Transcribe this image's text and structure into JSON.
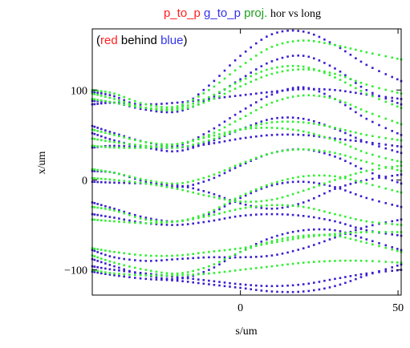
{
  "chart_data": {
    "type": "scatter",
    "title": {
      "parts": [
        {
          "text": "p_to_p",
          "color": "#ff2020"
        },
        {
          "text": "g_to_p",
          "color": "#3333ee"
        },
        {
          "text": "proj.",
          "color": "#20a020"
        },
        {
          "text": "hor vs long",
          "color": "#000000"
        }
      ]
    },
    "annotation": {
      "parts": [
        {
          "text": "(",
          "color": "#000000"
        },
        {
          "text": "red",
          "color": "#ff2020"
        },
        {
          "text": " behind ",
          "color": "#000000"
        },
        {
          "text": "blue",
          "color": "#3333ee"
        },
        {
          "text": ")",
          "color": "#000000"
        }
      ]
    },
    "xlabel": "s/um",
    "ylabel": "x/um",
    "xlim": [
      -47,
      51
    ],
    "ylim": [
      -128,
      168
    ],
    "x_ticks": [
      {
        "value": 0,
        "label": "0"
      },
      {
        "value": 50,
        "label": "50"
      }
    ],
    "y_ticks": [
      {
        "value": 100,
        "label": "100"
      },
      {
        "value": 0,
        "label": "0"
      },
      {
        "value": -100,
        "label": "−100"
      }
    ],
    "grid": false,
    "colors": {
      "p_to_p": "#ff2020",
      "g_to_p": "#3a1fd0",
      "proj": "#33ee33"
    },
    "series": [
      {
        "name": "g_to_p",
        "color": "#3a1fd0",
        "curves": [
          {
            "x": [
              -47,
              -40,
              -30,
              -20,
              -10,
              0,
              10,
              20,
              30,
              40,
              51
            ],
            "y": [
              98,
              93,
              80,
              80,
              105,
              138,
              162,
              165,
              150,
              128,
              110
            ]
          },
          {
            "x": [
              -47,
              -40,
              -30,
              -20,
              -10,
              0,
              10,
              20,
              30,
              40,
              51
            ],
            "y": [
              88,
              86,
              78,
              76,
              90,
              112,
              132,
              138,
              124,
              100,
              84
            ]
          },
          {
            "x": [
              -47,
              -40,
              -30,
              -20,
              -10,
              0,
              10,
              20,
              30,
              40,
              51
            ],
            "y": [
              84,
              86,
              84,
              86,
              90,
              94,
              98,
              101,
              100,
              95,
              90
            ]
          },
          {
            "x": [
              -47,
              -40,
              -30,
              -20,
              -10,
              0,
              10,
              20,
              30,
              40,
              51
            ],
            "y": [
              60,
              52,
              42,
              38,
              54,
              76,
              95,
              103,
              90,
              68,
              50
            ]
          },
          {
            "x": [
              -47,
              -40,
              -30,
              -20,
              -10,
              0,
              10,
              20,
              30,
              40,
              51
            ],
            "y": [
              52,
              44,
              36,
              32,
              42,
              56,
              68,
              68,
              57,
              42,
              30
            ]
          },
          {
            "x": [
              -47,
              -40,
              -30,
              -20,
              -10,
              0,
              10,
              20,
              30,
              40,
              51
            ],
            "y": [
              36,
              38,
              36,
              36,
              40,
              46,
              50,
              50,
              46,
              42,
              37
            ]
          },
          {
            "x": [
              -47,
              -40,
              -30,
              -20,
              -10,
              0,
              10,
              20,
              30,
              40,
              51
            ],
            "y": [
              10,
              8,
              -2,
              -8,
              0,
              16,
              30,
              34,
              26,
              10,
              -4
            ]
          },
          {
            "x": [
              -47,
              -40,
              -30,
              -20,
              -10,
              0,
              10,
              20,
              30,
              40,
              51
            ],
            "y": [
              -2,
              -3,
              -4,
              -6,
              -14,
              -26,
              -32,
              -25,
              -10,
              0,
              6
            ]
          },
          {
            "x": [
              -47,
              -40,
              -30,
              -20,
              -10,
              0,
              10,
              20,
              30,
              40,
              51
            ],
            "y": [
              -25,
              -32,
              -42,
              -46,
              -38,
              -20,
              -6,
              -2,
              -8,
              -20,
              -30
            ]
          },
          {
            "x": [
              -47,
              -40,
              -30,
              -20,
              -10,
              0,
              10,
              20,
              30,
              40,
              51
            ],
            "y": [
              -38,
              -42,
              -48,
              -50,
              -46,
              -40,
              -38,
              -40,
              -46,
              -56,
              -62
            ]
          },
          {
            "x": [
              -47,
              -40,
              -30,
              -20,
              -10,
              0,
              10,
              20,
              30,
              40,
              51
            ],
            "y": [
              -78,
              -86,
              -90,
              -88,
              -86,
              -86,
              -84,
              -76,
              -64,
              -52,
              -44
            ]
          },
          {
            "x": [
              -47,
              -40,
              -30,
              -20,
              -10,
              0,
              10,
              20,
              30,
              40,
              51
            ],
            "y": [
              -88,
              -96,
              -106,
              -110,
              -100,
              -80,
              -64,
              -56,
              -56,
              -66,
              -78
            ]
          },
          {
            "x": [
              -47,
              -40,
              -30,
              -20,
              -10,
              0,
              10,
              20,
              30,
              40,
              51
            ],
            "y": [
              -96,
              -100,
              -104,
              -108,
              -112,
              -116,
              -118,
              -116,
              -110,
              -104,
              -100
            ]
          },
          {
            "x": [
              -47,
              -40,
              -30,
              -20,
              -10,
              0,
              10,
              20,
              30,
              40,
              51
            ],
            "y": [
              -102,
              -106,
              -110,
              -112,
              -116,
              -120,
              -124,
              -124,
              -118,
              -106,
              -94
            ]
          }
        ]
      },
      {
        "name": "proj.",
        "color": "#33ee33",
        "curves": [
          {
            "x": [
              -47,
              -40,
              -30,
              -20,
              -10,
              0,
              10,
              20,
              30,
              40,
              51
            ],
            "y": [
              100,
              96,
              84,
              82,
              100,
              126,
              148,
              155,
              150,
              142,
              134
            ]
          },
          {
            "x": [
              -47,
              -40,
              -30,
              -20,
              -10,
              0,
              10,
              20,
              30,
              40,
              51
            ],
            "y": [
              96,
              90,
              80,
              78,
              88,
              104,
              118,
              123,
              118,
              106,
              96
            ]
          },
          {
            "x": [
              -47,
              -40,
              -30,
              -20,
              -10,
              0,
              10,
              20,
              30,
              40,
              51
            ],
            "y": [
              90,
              86,
              80,
              80,
              92,
              110,
              124,
              126,
              114,
              96,
              80
            ]
          },
          {
            "x": [
              -47,
              -40,
              -30,
              -20,
              -10,
              0,
              10,
              20,
              30,
              40,
              51
            ],
            "y": [
              56,
              50,
              42,
              40,
              50,
              68,
              86,
              94,
              90,
              76,
              62
            ]
          },
          {
            "x": [
              -47,
              -40,
              -30,
              -20,
              -10,
              0,
              10,
              20,
              30,
              40,
              51
            ],
            "y": [
              46,
              42,
              38,
              36,
              44,
              56,
              64,
              64,
              58,
              50,
              44
            ]
          },
          {
            "x": [
              -47,
              -40,
              -30,
              -20,
              -10,
              0,
              10,
              20,
              30,
              40,
              51
            ],
            "y": [
              38,
              36,
              36,
              40,
              48,
              56,
              58,
              54,
              44,
              30,
              20
            ]
          },
          {
            "x": [
              -47,
              -40,
              -30,
              -20,
              -10,
              0,
              10,
              20,
              30,
              40,
              51
            ],
            "y": [
              12,
              8,
              0,
              -4,
              4,
              18,
              30,
              34,
              30,
              20,
              10
            ]
          },
          {
            "x": [
              -47,
              -40,
              -30,
              -20,
              -10,
              0,
              10,
              20,
              30,
              40,
              51
            ],
            "y": [
              2,
              0,
              -4,
              -10,
              -18,
              -24,
              -22,
              -12,
              0,
              10,
              16
            ]
          },
          {
            "x": [
              -47,
              -40,
              -30,
              -20,
              -10,
              0,
              10,
              20,
              30,
              40,
              51
            ],
            "y": [
              -30,
              -34,
              -44,
              -46,
              -36,
              -18,
              -4,
              4,
              4,
              -4,
              -14
            ]
          },
          {
            "x": [
              -47,
              -40,
              -30,
              -20,
              -10,
              0,
              10,
              20,
              30,
              40,
              51
            ],
            "y": [
              -44,
              -46,
              -48,
              -46,
              -40,
              -32,
              -28,
              -30,
              -38,
              -46,
              -50
            ]
          },
          {
            "x": [
              -47,
              -40,
              -30,
              -20,
              -10,
              0,
              10,
              20,
              30,
              40,
              51
            ],
            "y": [
              -76,
              -80,
              -84,
              -84,
              -80,
              -76,
              -70,
              -64,
              -60,
              -58,
              -58
            ]
          },
          {
            "x": [
              -47,
              -40,
              -30,
              -20,
              -10,
              0,
              10,
              20,
              30,
              40,
              51
            ],
            "y": [
              -84,
              -92,
              -100,
              -104,
              -96,
              -80,
              -68,
              -62,
              -62,
              -70,
              -80
            ]
          },
          {
            "x": [
              -47,
              -40,
              -30,
              -20,
              -10,
              0,
              10,
              20,
              30,
              40,
              51
            ],
            "y": [
              -100,
              -104,
              -106,
              -106,
              -104,
              -100,
              -96,
              -92,
              -90,
              -90,
              -92
            ]
          }
        ]
      }
    ]
  }
}
